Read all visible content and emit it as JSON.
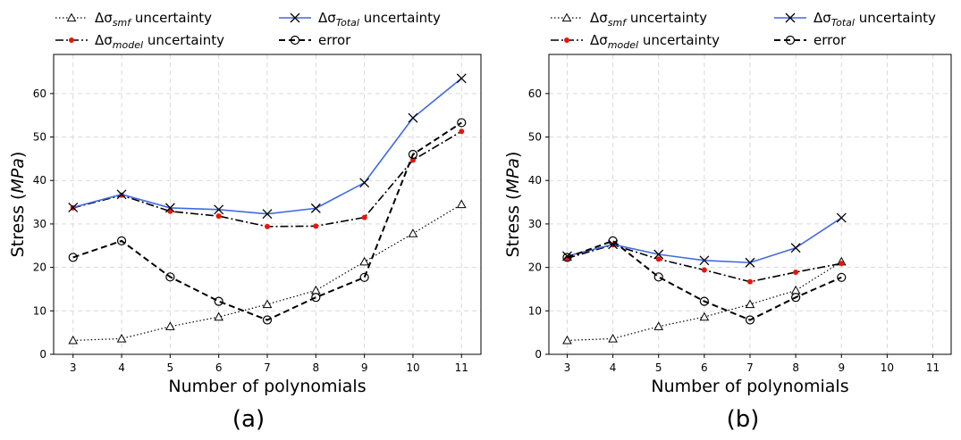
{
  "chart_data": [
    {
      "type": "line",
      "panel_label": "(a)",
      "xlabel": "Number of polynomials",
      "ylabel_prefix": "Stress (",
      "ylabel_unit": "MPa",
      "ylabel_suffix": ")",
      "xlim": [
        2.6,
        11.4
      ],
      "ylim": [
        0,
        69
      ],
      "xticks": [
        3,
        4,
        5,
        6,
        7,
        8,
        9,
        10,
        11
      ],
      "yticks": [
        0,
        10,
        20,
        30,
        40,
        50,
        60
      ],
      "grid": true,
      "legend_position": "top",
      "series": [
        {
          "key": "smf",
          "name_prefix": "Δσ",
          "name_sub": "smf",
          "name_suffix": " uncertainty",
          "x": [
            3,
            4,
            5,
            6,
            7,
            8,
            9,
            10,
            11
          ],
          "values": [
            3.2,
            3.6,
            6.4,
            8.6,
            11.5,
            14.7,
            21.3,
            27.8,
            34.5
          ]
        },
        {
          "key": "model",
          "name_prefix": "Δσ",
          "name_sub": "model",
          "name_suffix": " uncertainty",
          "x": [
            3,
            4,
            5,
            6,
            7,
            8,
            9,
            10,
            11
          ],
          "values": [
            33.7,
            36.6,
            32.9,
            31.8,
            29.4,
            29.5,
            31.5,
            44.7,
            51.3
          ]
        },
        {
          "key": "total",
          "name_prefix": "Δσ",
          "name_sub": "Total",
          "name_suffix": " uncertainty",
          "x": [
            3,
            4,
            5,
            6,
            7,
            8,
            9,
            10,
            11
          ],
          "values": [
            33.8,
            36.8,
            33.7,
            33.3,
            32.3,
            33.6,
            39.5,
            54.4,
            63.5
          ]
        },
        {
          "key": "error",
          "name_prefix": "error",
          "name_sub": "",
          "name_suffix": "",
          "x": [
            3,
            4,
            5,
            6,
            7,
            8,
            9,
            10,
            11
          ],
          "values": [
            22.3,
            26.1,
            17.8,
            12.2,
            7.9,
            13.1,
            17.7,
            46.0,
            53.3
          ]
        }
      ]
    },
    {
      "type": "line",
      "panel_label": "(b)",
      "xlabel": "Number of polynomials",
      "ylabel_prefix": "Stress (",
      "ylabel_unit": "MPa",
      "ylabel_suffix": ")",
      "xlim": [
        2.6,
        11.4
      ],
      "ylim": [
        0,
        69
      ],
      "xticks": [
        3,
        4,
        5,
        6,
        7,
        8,
        9,
        10,
        11
      ],
      "yticks": [
        0,
        10,
        20,
        30,
        40,
        50,
        60
      ],
      "grid": true,
      "legend_position": "top",
      "series": [
        {
          "key": "smf",
          "name_prefix": "Δσ",
          "name_sub": "smf",
          "name_suffix": " uncertainty",
          "x": [
            3,
            4,
            5,
            6,
            7,
            8,
            9
          ],
          "values": [
            3.2,
            3.6,
            6.4,
            8.6,
            11.5,
            14.7,
            21.3
          ]
        },
        {
          "key": "model",
          "name_prefix": "Δσ",
          "name_sub": "model",
          "name_suffix": " uncertainty",
          "x": [
            3,
            4,
            5,
            6,
            7,
            8,
            9
          ],
          "values": [
            22.1,
            25.2,
            21.9,
            19.4,
            16.7,
            18.9,
            20.9
          ]
        },
        {
          "key": "total",
          "name_prefix": "Δσ",
          "name_sub": "Total",
          "name_suffix": " uncertainty",
          "x": [
            3,
            4,
            5,
            6,
            7,
            8,
            9
          ],
          "values": [
            22.6,
            25.3,
            23.0,
            21.6,
            21.1,
            24.5,
            31.4
          ]
        },
        {
          "key": "error",
          "name_prefix": "error",
          "name_sub": "",
          "name_suffix": "",
          "x": [
            3,
            4,
            5,
            6,
            7,
            8,
            9
          ],
          "values": [
            22.3,
            26.1,
            17.8,
            12.2,
            7.9,
            13.1,
            17.7
          ]
        }
      ]
    }
  ],
  "colors": {
    "total_line": "#4169e1",
    "model_marker": "#e8150e",
    "black": "#000000",
    "grid": "#d9d9d9"
  }
}
